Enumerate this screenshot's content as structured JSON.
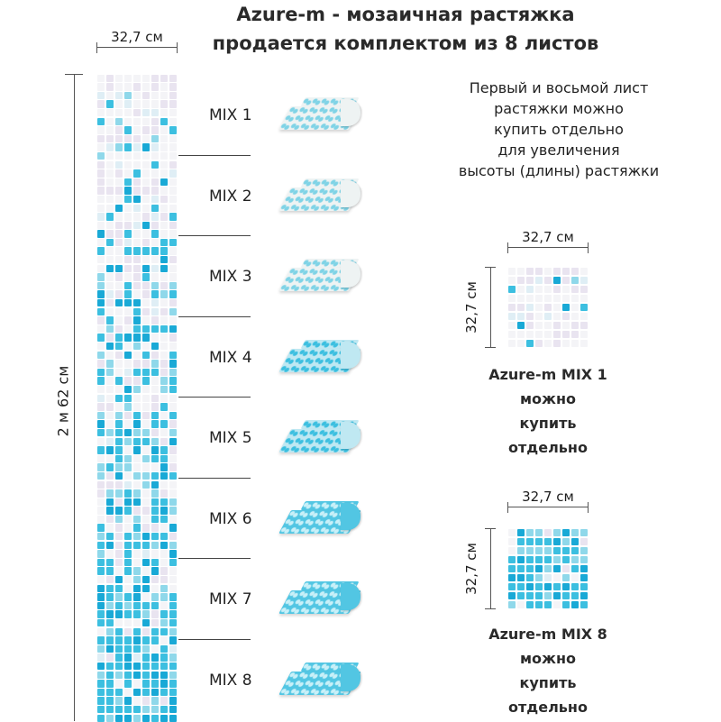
{
  "header": {
    "title_line1": "Azure-m - мозаичная растяжка",
    "title_line2": "продается комплектом из 8 листов"
  },
  "strip": {
    "width_label": "32,7 см",
    "height_label": "2 м 62 см"
  },
  "mixes": [
    {
      "label": "MIX 1",
      "level": 0
    },
    {
      "label": "MIX 2",
      "level": 1
    },
    {
      "label": "MIX 3",
      "level": 2
    },
    {
      "label": "MIX 4",
      "level": 3
    },
    {
      "label": "MIX 5",
      "level": 4
    },
    {
      "label": "MIX 6",
      "level": 5
    },
    {
      "label": "MIX 7",
      "level": 6
    },
    {
      "label": "MIX 8",
      "level": 7
    }
  ],
  "info": {
    "lines": [
      "Первый и восьмой лист",
      "растяжки можно",
      "купить отдельно",
      "для увеличения",
      "высоты (длины) растяжки"
    ]
  },
  "sample_mix1": {
    "width_label": "32,7 см",
    "height_label": "32,7 см",
    "caption": [
      "Azure-m MIX 1",
      "можно",
      "купить",
      "отдельно"
    ]
  },
  "sample_mix8": {
    "width_label": "32,7 см",
    "height_label": "32,7 см",
    "caption": [
      "Azure-m MIX 8",
      "можно",
      "купить",
      "отдельно"
    ]
  },
  "colors": {
    "white_tile": "#f4f4f7",
    "pearl_tile": "#e9e4f0",
    "light_blue": "#8fd8ea",
    "azure": "#3cbfe0",
    "deep_azure": "#19a9d6",
    "line": "#555555",
    "text": "#222222"
  }
}
